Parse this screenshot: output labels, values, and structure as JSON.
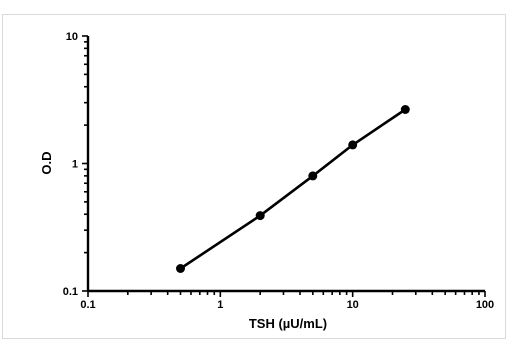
{
  "chart_data": {
    "type": "line",
    "title": "",
    "xlabel": "TSH (µU/mL)",
    "ylabel": "O.D",
    "xscale": "log",
    "yscale": "log",
    "xlim": [
      0.1,
      100
    ],
    "ylim": [
      0.1,
      10
    ],
    "x_ticks": [
      "0.1",
      "1",
      "10",
      "100"
    ],
    "y_ticks": [
      "0.1",
      "1",
      "10"
    ],
    "grid": false,
    "legend": "none",
    "series": [
      {
        "x": [
          0.5,
          2,
          5,
          10,
          25
        ],
        "y": [
          0.15,
          0.39,
          0.8,
          1.4,
          2.65
        ],
        "color": "#000000"
      }
    ]
  }
}
